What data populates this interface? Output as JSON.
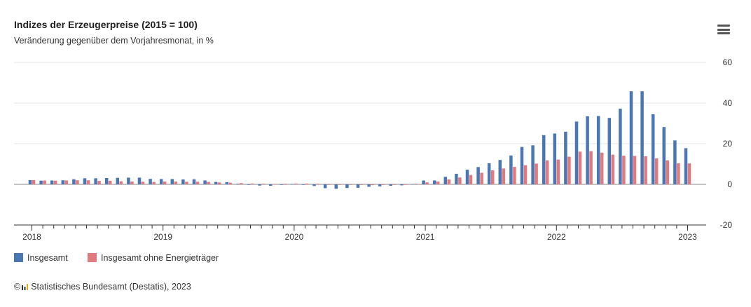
{
  "header": {
    "title": "Indizes der Erzeugerpreise (2015 = 100)",
    "subtitle": "Veränderung gegenüber dem Vorjahresmonat, in %",
    "menu_icon": "hamburger-menu-icon"
  },
  "credits": {
    "copyright_symbol": "©",
    "text": "Statistisches Bundesamt (Destatis), 2023"
  },
  "colors": {
    "series1": "#4a77b4",
    "series2": "#e07a7e",
    "grid": "#e6e6e6",
    "axis": "#333333"
  },
  "chart_data": {
    "type": "bar",
    "title": "Indizes der Erzeugerpreise (2015 = 100)",
    "subtitle": "Veränderung gegenüber dem Vorjahresmonat, in %",
    "x_tick_labels": [
      "2018",
      "2019",
      "2020",
      "2021",
      "2022",
      "2023"
    ],
    "y_ticks": [
      60,
      40,
      20,
      0,
      -20
    ],
    "ylim": [
      -20,
      60
    ],
    "y_axis_side": "right",
    "grid": true,
    "legend_position": "bottom-left",
    "categories": [
      "2018-01",
      "2018-02",
      "2018-03",
      "2018-04",
      "2018-05",
      "2018-06",
      "2018-07",
      "2018-08",
      "2018-09",
      "2018-10",
      "2018-11",
      "2018-12",
      "2019-01",
      "2019-02",
      "2019-03",
      "2019-04",
      "2019-05",
      "2019-06",
      "2019-07",
      "2019-08",
      "2019-09",
      "2019-10",
      "2019-11",
      "2019-12",
      "2020-01",
      "2020-02",
      "2020-03",
      "2020-04",
      "2020-05",
      "2020-06",
      "2020-07",
      "2020-08",
      "2020-09",
      "2020-10",
      "2020-11",
      "2020-12",
      "2021-01",
      "2021-02",
      "2021-03",
      "2021-04",
      "2021-05",
      "2021-06",
      "2021-07",
      "2021-08",
      "2021-09",
      "2021-10",
      "2021-11",
      "2021-12",
      "2022-01",
      "2022-02",
      "2022-03",
      "2022-04",
      "2022-05",
      "2022-06",
      "2022-07",
      "2022-08",
      "2022-09",
      "2022-10",
      "2022-11",
      "2022-12",
      "2023-01"
    ],
    "series": [
      {
        "name": "Insgesamt",
        "color": "#4a77b4",
        "values": [
          2.1,
          1.8,
          1.9,
          2.0,
          2.5,
          3.0,
          3.0,
          3.1,
          3.2,
          3.3,
          3.3,
          2.7,
          2.6,
          2.6,
          2.4,
          2.5,
          1.9,
          1.2,
          1.1,
          0.3,
          -0.1,
          -0.6,
          -0.7,
          -0.2,
          0.2,
          -0.1,
          -0.8,
          -1.9,
          -2.2,
          -1.8,
          -1.7,
          -1.2,
          -1.0,
          -0.7,
          -0.5,
          0.2,
          1.9,
          1.9,
          3.7,
          5.2,
          7.2,
          8.5,
          10.4,
          12.0,
          14.2,
          18.4,
          19.2,
          24.2,
          25.0,
          25.9,
          30.9,
          33.5,
          33.6,
          32.7,
          37.2,
          45.8,
          45.8,
          34.5,
          28.2,
          21.6,
          17.8
        ]
      },
      {
        "name": "Insgesamt ohne Energieträger",
        "color": "#e07a7e",
        "values": [
          2.1,
          1.9,
          1.8,
          1.9,
          2.0,
          2.0,
          1.7,
          1.8,
          1.5,
          1.4,
          1.3,
          1.2,
          1.4,
          1.4,
          1.3,
          1.3,
          1.2,
          0.9,
          0.8,
          0.6,
          0.4,
          0.3,
          0.2,
          0.3,
          0.4,
          0.4,
          0.3,
          0.0,
          -0.2,
          -0.2,
          -0.3,
          -0.4,
          -0.3,
          -0.2,
          0.0,
          0.3,
          1.0,
          1.4,
          2.4,
          3.4,
          4.6,
          5.7,
          6.9,
          7.8,
          8.6,
          9.4,
          10.2,
          11.8,
          12.2,
          13.6,
          16.1,
          16.3,
          15.6,
          14.6,
          14.1,
          14.0,
          13.8,
          12.8,
          11.8,
          10.4,
          10.3
        ]
      }
    ]
  }
}
